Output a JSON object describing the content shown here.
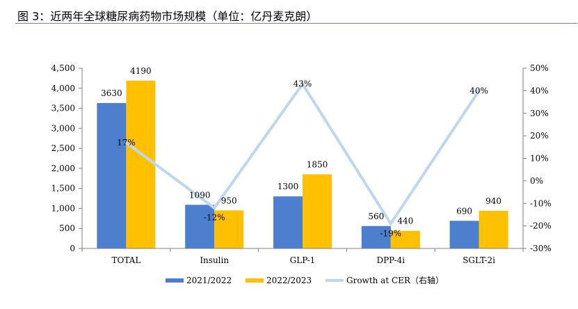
{
  "figure": {
    "title": "图 3：近两年全球糖尿病药物市场规模（单位：亿丹麦克朗）"
  },
  "chart_data": {
    "type": "bar",
    "categories": [
      "TOTAL",
      "Insulin",
      "GLP-1",
      "DPP-4i",
      "SGLT-2i"
    ],
    "series": [
      {
        "name": "2021/2022",
        "type": "bar",
        "axis": "left",
        "color": "#4c80cf",
        "values": [
          3630,
          1090,
          1300,
          560,
          690
        ],
        "labels": [
          "3630",
          "1090",
          "1300",
          "560",
          "690"
        ]
      },
      {
        "name": "2022/2023",
        "type": "bar",
        "axis": "left",
        "color": "#ffc000",
        "values": [
          4190,
          950,
          1850,
          440,
          940
        ],
        "labels": [
          "4190",
          "950",
          "1850",
          "440",
          "940"
        ]
      },
      {
        "name": "Growth at CER（右轴）",
        "type": "line",
        "axis": "right",
        "color": "#bdd7ee",
        "values": [
          17,
          -12,
          43,
          -19,
          40
        ],
        "labels": [
          "17%",
          "-12%",
          "43%",
          "-19%",
          "40%"
        ]
      }
    ],
    "y_left": {
      "min": 0,
      "max": 4500,
      "step": 500,
      "ticks": [
        "0",
        "500",
        "1,000",
        "1,500",
        "2,000",
        "2,500",
        "3,000",
        "3,500",
        "4,000",
        "4,500"
      ]
    },
    "y_right": {
      "min": -30,
      "max": 50,
      "step": 10,
      "ticks": [
        "-30%",
        "-20%",
        "-10%",
        "0%",
        "10%",
        "20%",
        "30%",
        "40%",
        "50%"
      ]
    },
    "grid": false,
    "legend_position": "bottom"
  }
}
